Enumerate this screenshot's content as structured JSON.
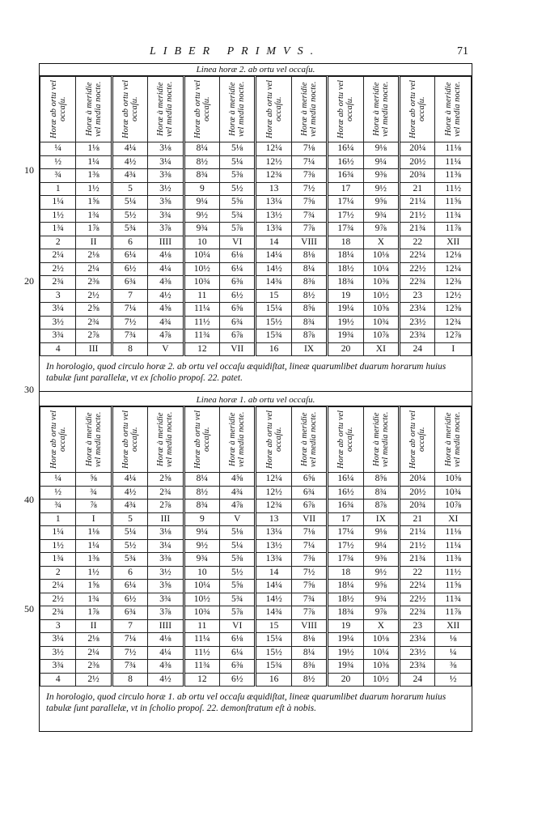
{
  "header": {
    "running_head": "LIBER PRIMVS.",
    "page_number": "71"
  },
  "margin_numbers": [
    "10",
    "20",
    "30",
    "40",
    "50"
  ],
  "tables": [
    {
      "caption": "Linea horæ 2. ab ortu vel occaſu.",
      "headers": [
        "Horæ ab ortu vel occaſu.",
        "Horæ à meridie vel media nocte.",
        "Horæ ab ortu vel occaſu.",
        "Horæ à meridie vel media nocte.",
        "Horæ ab ortu vel occaſu.",
        "Horæ à meridie vel media nocte.",
        "Horæ ab ortu vel occaſu.",
        "Horæ à meridie vel media nocte.",
        "Horæ ab ortu vel occaſu.",
        "Horæ à meridie vel media nocte.",
        "Horæ ab ortu vel occaſu.",
        "Horæ à meridie vel media nocte."
      ],
      "rows": [
        [
          "¼",
          "1⅛",
          "4¼",
          "3⅛",
          "8¼",
          "5⅛",
          "12¼",
          "7⅛",
          "16¼",
          "9⅛",
          "20¼",
          "11⅛"
        ],
        [
          "½",
          "1¼",
          "4½",
          "3¼",
          "8½",
          "5¼",
          "12½",
          "7¼",
          "16½",
          "9¼",
          "20½",
          "11¼"
        ],
        [
          "¾",
          "1⅜",
          "4¾",
          "3⅜",
          "8¾",
          "5⅜",
          "12¾",
          "7⅜",
          "16¾",
          "9⅜",
          "20¾",
          "11⅜"
        ],
        [
          "1",
          "1½",
          "5",
          "3½",
          "9",
          "5½",
          "13",
          "7½",
          "17",
          "9½",
          "21",
          "11½"
        ],
        [
          "1¼",
          "1⅝",
          "5¼",
          "3⅝",
          "9¼",
          "5⅝",
          "13¼",
          "7⅝",
          "17¼",
          "9⅝",
          "21¼",
          "11⅝"
        ],
        [
          "1½",
          "1¾",
          "5½",
          "3¾",
          "9½",
          "5¾",
          "13½",
          "7¾",
          "17½",
          "9¾",
          "21½",
          "11¾"
        ],
        [
          "1¾",
          "1⅞",
          "5¾",
          "3⅞",
          "9¾",
          "5⅞",
          "13¾",
          "7⅞",
          "17¾",
          "9⅞",
          "21¾",
          "11⅞"
        ],
        [
          "2",
          "II",
          "6",
          "IIII",
          "10",
          "VI",
          "14",
          "VIII",
          "18",
          "X",
          "22",
          "XII"
        ],
        [
          "2¼",
          "2⅛",
          "6¼",
          "4⅛",
          "10¼",
          "6⅛",
          "14¼",
          "8⅛",
          "18¼",
          "10⅛",
          "22¼",
          "12⅛"
        ],
        [
          "2½",
          "2¼",
          "6½",
          "4¼",
          "10½",
          "6¼",
          "14½",
          "8¼",
          "18½",
          "10¼",
          "22½",
          "12¼"
        ],
        [
          "2¾",
          "2⅜",
          "6¾",
          "4⅜",
          "10¾",
          "6⅜",
          "14¾",
          "8⅜",
          "18¾",
          "10⅜",
          "22¾",
          "12⅜"
        ],
        [
          "3",
          "2½",
          "7",
          "4½",
          "11",
          "6½",
          "15",
          "8½",
          "19",
          "10½",
          "23",
          "12½"
        ],
        [
          "3¼",
          "2⅝",
          "7¼",
          "4⅝",
          "11¼",
          "6⅝",
          "15¼",
          "8⅝",
          "19¼",
          "10⅝",
          "23¼",
          "12⅝"
        ],
        [
          "3½",
          "2¾",
          "7½",
          "4¾",
          "11½",
          "6¾",
          "15½",
          "8¾",
          "19½",
          "10¾",
          "23½",
          "12¾"
        ],
        [
          "3¾",
          "2⅞",
          "7¾",
          "4⅞",
          "11¾",
          "6⅞",
          "15¾",
          "8⅞",
          "19¾",
          "10⅞",
          "23¾",
          "12⅞"
        ],
        [
          "4",
          "III",
          "8",
          "V",
          "12",
          "VII",
          "16",
          "IX",
          "20",
          "XI",
          "24",
          "I"
        ]
      ],
      "note": "In horologio, quod circulo horæ 2. ab ortu vel occaſu æquidiſtat, lineæ quarumlibet duarum horarum huius tabulæ ſunt parallelæ, vt ex ſcholio propoſ. 22. patet."
    },
    {
      "caption": "Linea horæ 1. ab ortu vel occaſu.",
      "headers": [
        "Horæ ab ortu vel occaſu.",
        "Horæ à meridie vel media nocte.",
        "Horæ ab ortu vel occaſu.",
        "Horæ à meridie vel media nocte.",
        "Horæ ab ortu vel occaſu.",
        "Horæ à meridie vel media nocte.",
        "Horæ ab ortu vel occaſu.",
        "Horæ à meridie vel media nocte.",
        "Horæ ab ortu vel occaſu.",
        "Horæ à meridie vel media nocte.",
        "Horæ ab ortu vel occaſu.",
        "Horæ à meridie vel media nocte."
      ],
      "rows": [
        [
          "¼",
          "⅝",
          "4¼",
          "2⅝",
          "8¼",
          "4⅝",
          "12¼",
          "6⅝",
          "16¼",
          "8⅝",
          "20¼",
          "10⅝"
        ],
        [
          "½",
          "¾",
          "4½",
          "2¾",
          "8½",
          "4¾",
          "12½",
          "6¾",
          "16½",
          "8¾",
          "20½",
          "10¾"
        ],
        [
          "¾",
          "⅞",
          "4¾",
          "2⅞",
          "8¾",
          "4⅞",
          "12¾",
          "6⅞",
          "16¾",
          "8⅞",
          "20¾",
          "10⅞"
        ],
        [
          "1",
          "I",
          "5",
          "III",
          "9",
          "V",
          "13",
          "VII",
          "17",
          "IX",
          "21",
          "XI"
        ],
        [
          "1¼",
          "1⅛",
          "5¼",
          "3⅛",
          "9¼",
          "5⅛",
          "13¼",
          "7⅛",
          "17¼",
          "9⅛",
          "21¼",
          "11⅛"
        ],
        [
          "1½",
          "1¼",
          "5½",
          "3¼",
          "9½",
          "5¼",
          "13½",
          "7¼",
          "17½",
          "9¼",
          "21½",
          "11¼"
        ],
        [
          "1¾",
          "1⅜",
          "5¾",
          "3⅜",
          "9¾",
          "5⅜",
          "13¾",
          "7⅜",
          "17¾",
          "9⅜",
          "21¾",
          "11⅜"
        ],
        [
          "2",
          "1½",
          "6",
          "3½",
          "10",
          "5½",
          "14",
          "7½",
          "18",
          "9½",
          "22",
          "11½"
        ],
        [
          "2¼",
          "1⅝",
          "6¼",
          "3⅝",
          "10¼",
          "5⅝",
          "14¼",
          "7⅝",
          "18¼",
          "9⅝",
          "22¼",
          "11⅝"
        ],
        [
          "2½",
          "1¾",
          "6½",
          "3¾",
          "10½",
          "5¾",
          "14½",
          "7¾",
          "18½",
          "9¾",
          "22½",
          "11¾"
        ],
        [
          "2¾",
          "1⅞",
          "6¾",
          "3⅞",
          "10¾",
          "5⅞",
          "14¾",
          "7⅞",
          "18¾",
          "9⅞",
          "22¾",
          "11⅞"
        ],
        [
          "3",
          "II",
          "7",
          "IIII",
          "11",
          "VI",
          "15",
          "VIII",
          "19",
          "X",
          "23",
          "XII"
        ],
        [
          "3¼",
          "2⅛",
          "7¼",
          "4⅛",
          "11¼",
          "6⅛",
          "15¼",
          "8⅛",
          "19¼",
          "10⅛",
          "23¼",
          "⅛"
        ],
        [
          "3½",
          "2¼",
          "7½",
          "4¼",
          "11½",
          "6¼",
          "15½",
          "8¼",
          "19½",
          "10¼",
          "23½",
          "¼"
        ],
        [
          "3¾",
          "2⅜",
          "7¾",
          "4⅜",
          "11¾",
          "6⅜",
          "15¾",
          "8⅜",
          "19¾",
          "10⅜",
          "23¾",
          "⅜"
        ],
        [
          "4",
          "2½",
          "8",
          "4½",
          "12",
          "6½",
          "16",
          "8½",
          "20",
          "10½",
          "24",
          "½"
        ]
      ],
      "note": "In horologio, quod circulo horæ 1. ab ortu vel occaſu æquidiſtat, lineæ quarumlibet duarum horarum huius tabulæ ſunt parallelæ, vt in ſcholio propoſ. 22. demonſtratum eſt à nobis."
    }
  ]
}
